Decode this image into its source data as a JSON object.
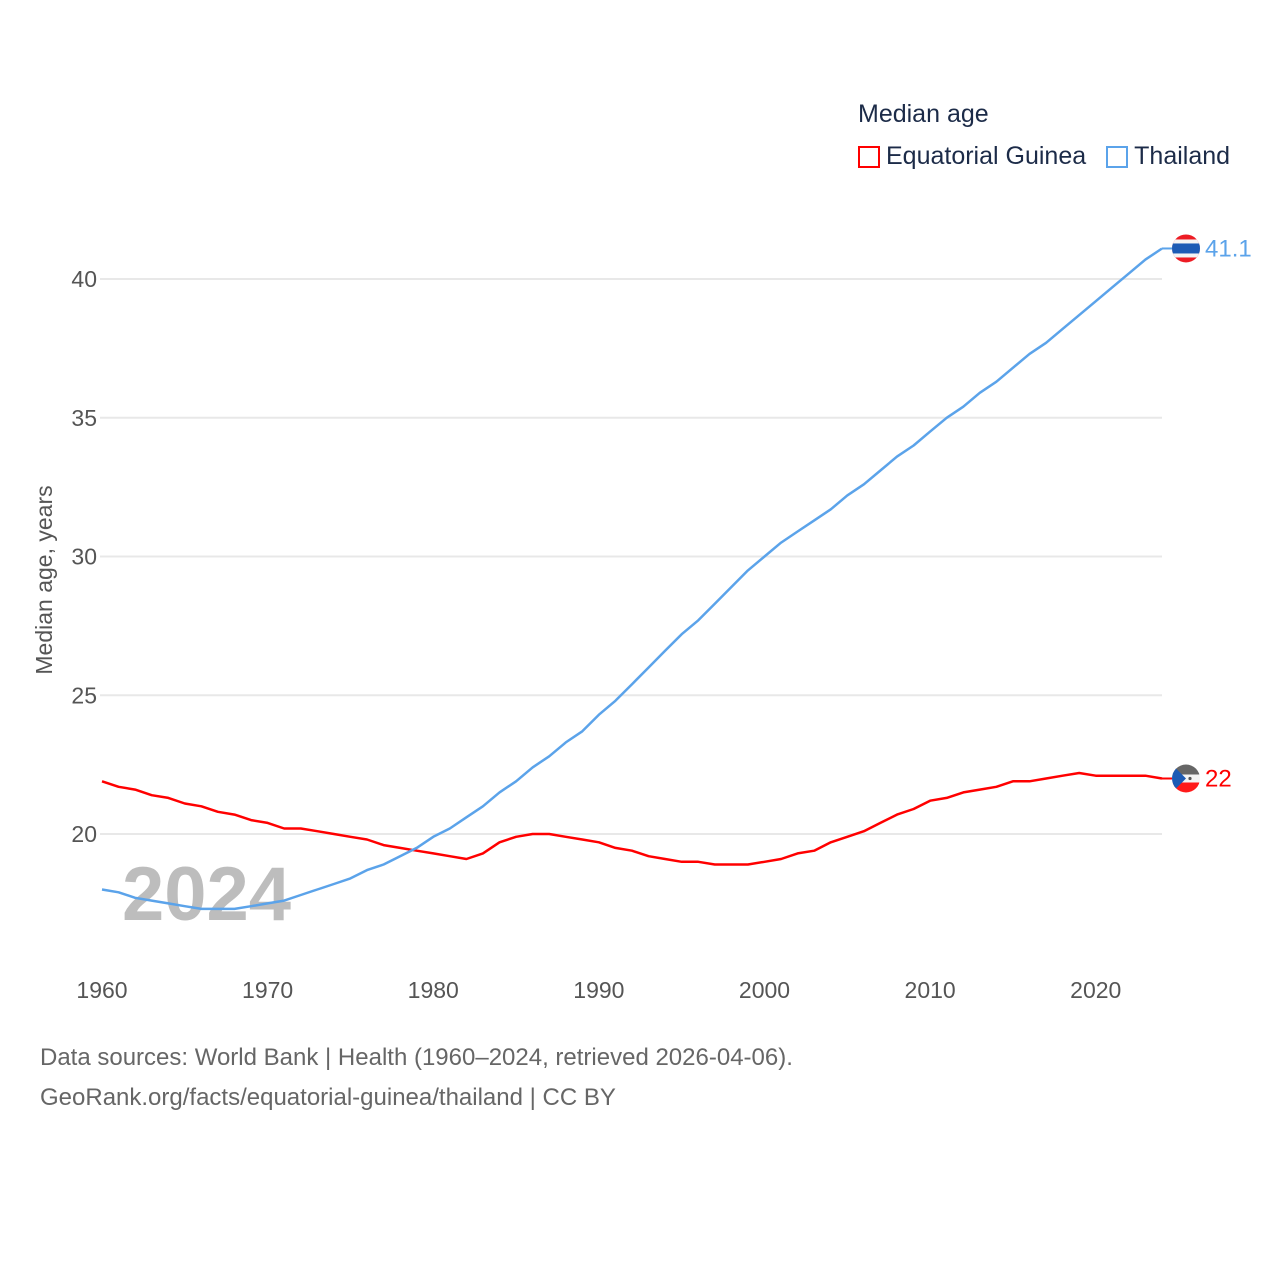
{
  "chart_data": {
    "type": "line",
    "title": "Median age",
    "ylabel": "Median age, years",
    "xlabel": "",
    "xlim": [
      1960,
      2024
    ],
    "ylim": [
      16.3,
      42.3
    ],
    "x_ticks": [
      1960,
      1970,
      1980,
      1990,
      2000,
      2010,
      2020
    ],
    "y_ticks": [
      20,
      25,
      30,
      35,
      40
    ],
    "grid": true,
    "legend_placement": "top-right",
    "watermark_year": "2024",
    "x": [
      1960,
      1961,
      1962,
      1963,
      1964,
      1965,
      1966,
      1967,
      1968,
      1969,
      1970,
      1971,
      1972,
      1973,
      1974,
      1975,
      1976,
      1977,
      1978,
      1979,
      1980,
      1981,
      1982,
      1983,
      1984,
      1985,
      1986,
      1987,
      1988,
      1989,
      1990,
      1991,
      1992,
      1993,
      1994,
      1995,
      1996,
      1997,
      1998,
      1999,
      2000,
      2001,
      2002,
      2003,
      2004,
      2005,
      2006,
      2007,
      2008,
      2009,
      2010,
      2011,
      2012,
      2013,
      2014,
      2015,
      2016,
      2017,
      2018,
      2019,
      2020,
      2021,
      2022,
      2023,
      2024
    ],
    "series": [
      {
        "name": "Equatorial Guinea",
        "color": "#ff0000",
        "end_label": "22",
        "values": [
          21.9,
          21.7,
          21.6,
          21.4,
          21.3,
          21.1,
          21.0,
          20.8,
          20.7,
          20.5,
          20.4,
          20.2,
          20.2,
          20.1,
          20.0,
          19.9,
          19.8,
          19.6,
          19.5,
          19.4,
          19.3,
          19.2,
          19.1,
          19.3,
          19.7,
          19.9,
          20.0,
          20.0,
          19.9,
          19.8,
          19.7,
          19.5,
          19.4,
          19.2,
          19.1,
          19.0,
          19.0,
          18.9,
          18.9,
          18.9,
          19.0,
          19.1,
          19.3,
          19.4,
          19.7,
          19.9,
          20.1,
          20.4,
          20.7,
          20.9,
          21.2,
          21.3,
          21.5,
          21.6,
          21.7,
          21.9,
          21.9,
          22.0,
          22.1,
          22.2,
          22.1,
          22.1,
          22.1,
          22.1,
          22.0
        ]
      },
      {
        "name": "Thailand",
        "color": "#5ba3ea",
        "end_label": "41.1",
        "values": [
          18.0,
          17.9,
          17.7,
          17.6,
          17.5,
          17.4,
          17.3,
          17.3,
          17.3,
          17.4,
          17.5,
          17.6,
          17.8,
          18.0,
          18.2,
          18.4,
          18.7,
          18.9,
          19.2,
          19.5,
          19.9,
          20.2,
          20.6,
          21.0,
          21.5,
          21.9,
          22.4,
          22.8,
          23.3,
          23.7,
          24.3,
          24.8,
          25.4,
          26.0,
          26.6,
          27.2,
          27.7,
          28.3,
          28.9,
          29.5,
          30.0,
          30.5,
          30.9,
          31.3,
          31.7,
          32.2,
          32.6,
          33.1,
          33.6,
          34.0,
          34.5,
          35.0,
          35.4,
          35.9,
          36.3,
          36.8,
          37.3,
          37.7,
          38.2,
          38.7,
          39.2,
          39.7,
          40.2,
          40.7,
          41.1
        ]
      }
    ]
  },
  "footer": {
    "line1": "Data sources: World Bank | Health (1960–2024, retrieved 2026-04-06).",
    "line2": "GeoRank.org/facts/equatorial-guinea/thailand | CC BY"
  }
}
